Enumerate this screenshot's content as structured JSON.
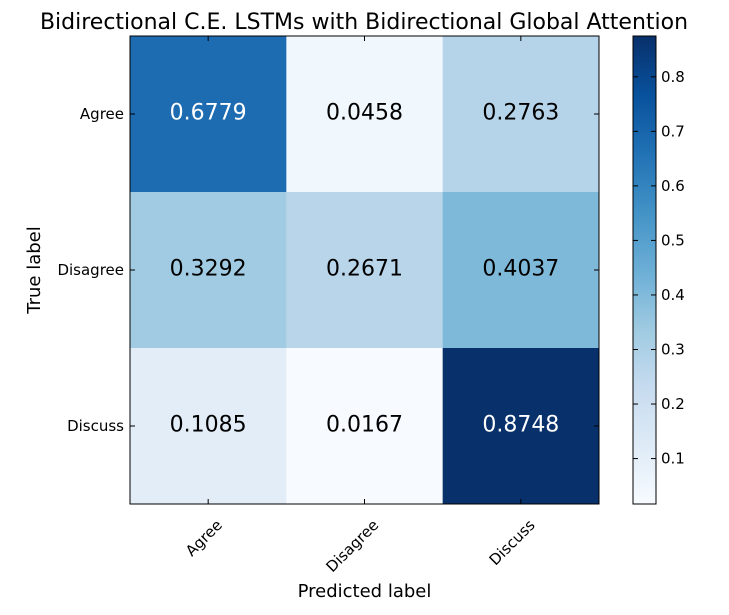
{
  "chart_data": {
    "type": "heatmap",
    "title": "Bidirectional C.E. LSTMs with Bidirectional Global Attention",
    "xlabel": "Predicted label",
    "ylabel": "True label",
    "x_categories": [
      "Agree",
      "Disagree",
      "Discuss"
    ],
    "y_categories": [
      "Agree",
      "Disagree",
      "Discuss"
    ],
    "values": [
      [
        0.6779,
        0.0458,
        0.2763
      ],
      [
        0.3292,
        0.2671,
        0.4037
      ],
      [
        0.1085,
        0.0167,
        0.8748
      ]
    ],
    "value_labels": [
      [
        "0.6779",
        "0.0458",
        "0.2763"
      ],
      [
        "0.3292",
        "0.2671",
        "0.4037"
      ],
      [
        "0.1085",
        "0.0167",
        "0.8748"
      ]
    ],
    "colormap": "Blues",
    "colormap_stops": [
      "#f7fbff",
      "#deebf7",
      "#c6dbef",
      "#9ecae1",
      "#6baed6",
      "#4292c6",
      "#2171b5",
      "#08519c",
      "#08306b"
    ],
    "colorbar": {
      "range": [
        0.0167,
        0.8748
      ],
      "ticks": [
        0.1,
        0.2,
        0.3,
        0.4,
        0.5,
        0.6,
        0.7,
        0.8
      ],
      "tick_labels": [
        "0.1",
        "0.2",
        "0.3",
        "0.4",
        "0.5",
        "0.6",
        "0.7",
        "0.8"
      ]
    },
    "text_color_threshold": 0.4458,
    "grid": false
  }
}
